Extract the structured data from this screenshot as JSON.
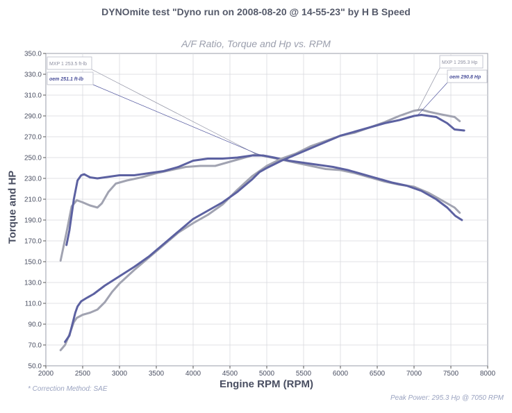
{
  "title": "DYNOmite test \"Dyno run on 2008-08-20 @ 14-55-23\" by H B Speed",
  "chart_data": {
    "type": "line",
    "title": "A/F Ratio, Torque and Hp vs. RPM",
    "xlabel": "Engine RPM (RPM)",
    "ylabel": "Torque and HP",
    "xlim": [
      2000,
      8000
    ],
    "ylim": [
      50,
      350
    ],
    "x_ticks": [
      2000,
      2500,
      3000,
      3500,
      4000,
      4500,
      5000,
      5500,
      6000,
      6500,
      7000,
      7500,
      8000
    ],
    "y_ticks": [
      50,
      70,
      90,
      110,
      130,
      150,
      170,
      190,
      210,
      230,
      250,
      270,
      290,
      310,
      330,
      350
    ],
    "y_tick_labels": [
      "50.0",
      "70.0",
      "90.0",
      "110.0",
      "130.0",
      "150.0",
      "170.0",
      "190.0",
      "210.0",
      "230.0",
      "250.0",
      "270.0",
      "290.0",
      "310.0",
      "330.0",
      "350.0"
    ],
    "grid": true,
    "series": [
      {
        "name": "MXP 1",
        "kind": "torque",
        "color": "#a1a3b1",
        "points": [
          [
            2200,
            151
          ],
          [
            2280,
            178
          ],
          [
            2350,
            203
          ],
          [
            2420,
            209
          ],
          [
            2500,
            207
          ],
          [
            2600,
            204
          ],
          [
            2700,
            202
          ],
          [
            2760,
            206
          ],
          [
            2850,
            217
          ],
          [
            2950,
            225
          ],
          [
            3100,
            228
          ],
          [
            3300,
            231
          ],
          [
            3500,
            235
          ],
          [
            3700,
            238
          ],
          [
            3900,
            241
          ],
          [
            4100,
            242
          ],
          [
            4300,
            242
          ],
          [
            4500,
            246
          ],
          [
            4700,
            250
          ],
          [
            4850,
            253
          ],
          [
            5000,
            251
          ],
          [
            5200,
            248
          ],
          [
            5400,
            245
          ],
          [
            5600,
            242
          ],
          [
            5800,
            239
          ],
          [
            6000,
            238
          ],
          [
            6200,
            235
          ],
          [
            6400,
            231
          ],
          [
            6600,
            227
          ],
          [
            6800,
            224
          ],
          [
            7000,
            222
          ],
          [
            7200,
            216
          ],
          [
            7400,
            208
          ],
          [
            7550,
            202
          ],
          [
            7620,
            197
          ]
        ]
      },
      {
        "name": "oem",
        "kind": "torque",
        "color": "#5c61a1",
        "points": [
          [
            2280,
            166
          ],
          [
            2320,
            180
          ],
          [
            2380,
            210
          ],
          [
            2430,
            228
          ],
          [
            2480,
            233
          ],
          [
            2520,
            234
          ],
          [
            2600,
            231
          ],
          [
            2700,
            230
          ],
          [
            2800,
            231
          ],
          [
            2900,
            232
          ],
          [
            3000,
            233
          ],
          [
            3200,
            233
          ],
          [
            3400,
            235
          ],
          [
            3600,
            237
          ],
          [
            3800,
            241
          ],
          [
            4000,
            247
          ],
          [
            4200,
            249
          ],
          [
            4400,
            249
          ],
          [
            4600,
            250
          ],
          [
            4800,
            252
          ],
          [
            4950,
            252
          ],
          [
            5100,
            250
          ],
          [
            5300,
            247
          ],
          [
            5500,
            245
          ],
          [
            5700,
            243
          ],
          [
            5900,
            241
          ],
          [
            6100,
            238
          ],
          [
            6300,
            234
          ],
          [
            6500,
            230
          ],
          [
            6700,
            226
          ],
          [
            6900,
            223
          ],
          [
            7100,
            218
          ],
          [
            7300,
            210
          ],
          [
            7450,
            202
          ],
          [
            7560,
            194
          ],
          [
            7650,
            190
          ]
        ]
      },
      {
        "name": "MXP 1",
        "kind": "hp",
        "color": "#a1a3b1",
        "points": [
          [
            2200,
            65
          ],
          [
            2260,
            70
          ],
          [
            2320,
            80
          ],
          [
            2380,
            92
          ],
          [
            2420,
            96
          ],
          [
            2500,
            99
          ],
          [
            2600,
            101
          ],
          [
            2700,
            104
          ],
          [
            2800,
            111
          ],
          [
            2900,
            121
          ],
          [
            3000,
            129
          ],
          [
            3200,
            142
          ],
          [
            3400,
            154
          ],
          [
            3600,
            166
          ],
          [
            3800,
            178
          ],
          [
            4000,
            187
          ],
          [
            4200,
            195
          ],
          [
            4400,
            205
          ],
          [
            4600,
            219
          ],
          [
            4800,
            232
          ],
          [
            5000,
            242
          ],
          [
            5200,
            249
          ],
          [
            5400,
            254
          ],
          [
            5600,
            261
          ],
          [
            5800,
            266
          ],
          [
            6000,
            271
          ],
          [
            6200,
            274
          ],
          [
            6400,
            279
          ],
          [
            6600,
            284
          ],
          [
            6800,
            290
          ],
          [
            7000,
            295
          ],
          [
            7100,
            296
          ],
          [
            7200,
            294
          ],
          [
            7400,
            291
          ],
          [
            7550,
            289
          ],
          [
            7620,
            285
          ]
        ]
      },
      {
        "name": "oem",
        "kind": "hp",
        "color": "#5c61a1",
        "points": [
          [
            2260,
            73
          ],
          [
            2320,
            79
          ],
          [
            2360,
            90
          ],
          [
            2400,
            101
          ],
          [
            2430,
            107
          ],
          [
            2480,
            112
          ],
          [
            2550,
            115
          ],
          [
            2650,
            119
          ],
          [
            2800,
            127
          ],
          [
            3000,
            136
          ],
          [
            3200,
            145
          ],
          [
            3400,
            155
          ],
          [
            3600,
            167
          ],
          [
            3800,
            179
          ],
          [
            4000,
            191
          ],
          [
            4200,
            199
          ],
          [
            4400,
            207
          ],
          [
            4600,
            217
          ],
          [
            4800,
            229
          ],
          [
            4900,
            236
          ],
          [
            5000,
            240
          ],
          [
            5200,
            247
          ],
          [
            5400,
            253
          ],
          [
            5600,
            259
          ],
          [
            5800,
            265
          ],
          [
            6000,
            271
          ],
          [
            6200,
            275
          ],
          [
            6400,
            279
          ],
          [
            6600,
            283
          ],
          [
            6800,
            286
          ],
          [
            7000,
            290
          ],
          [
            7100,
            291
          ],
          [
            7300,
            289
          ],
          [
            7450,
            283
          ],
          [
            7550,
            277
          ],
          [
            7680,
            276
          ]
        ]
      }
    ],
    "annotations": [
      {
        "series": "MXP 1",
        "text": "MXP 1 253.5 ft-lb",
        "point": [
          4850,
          253.5
        ],
        "box": "left-top"
      },
      {
        "series": "oem",
        "text": "oem  251.1 ft-lb",
        "point": [
          4950,
          251.1
        ],
        "box": "left-second"
      },
      {
        "series": "MXP 1",
        "text": "MXP 1 295.3 Hp",
        "point": [
          7050,
          295.3
        ],
        "box": "right-top"
      },
      {
        "series": "oem",
        "text": "oem 290.8 Hp",
        "point": [
          7050,
          290.8
        ],
        "box": "right-second"
      }
    ]
  },
  "footer": {
    "correction": "* Correction Method: SAE",
    "peak": "Peak Power: 295.3 Hp @ 7050 RPM"
  }
}
